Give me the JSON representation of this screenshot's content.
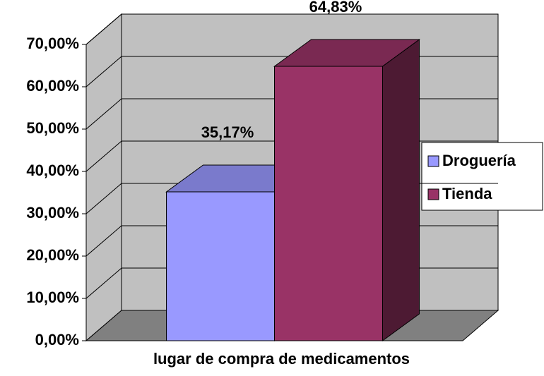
{
  "chart_data": {
    "type": "bar",
    "categories": [
      "lugar de compra de medicamentos"
    ],
    "series": [
      {
        "name": "Droguería",
        "color": "#9999ff",
        "values": [
          35.17
        ],
        "value_labels": [
          "35,17%"
        ]
      },
      {
        "name": "Tienda",
        "color": "#993366",
        "values": [
          64.83
        ],
        "value_labels": [
          "64,83%"
        ]
      }
    ],
    "ylim": [
      0,
      70
    ],
    "yticks": [
      {
        "value": 0,
        "label": "0,00%"
      },
      {
        "value": 10,
        "label": "10,00%"
      },
      {
        "value": 20,
        "label": "20,00%"
      },
      {
        "value": 30,
        "label": "30,00%"
      },
      {
        "value": 40,
        "label": "40,00%"
      },
      {
        "value": 50,
        "label": "50,00%"
      },
      {
        "value": 60,
        "label": "60,00%"
      },
      {
        "value": 70,
        "label": "70,00%"
      }
    ],
    "grid": true,
    "legend": "right"
  }
}
